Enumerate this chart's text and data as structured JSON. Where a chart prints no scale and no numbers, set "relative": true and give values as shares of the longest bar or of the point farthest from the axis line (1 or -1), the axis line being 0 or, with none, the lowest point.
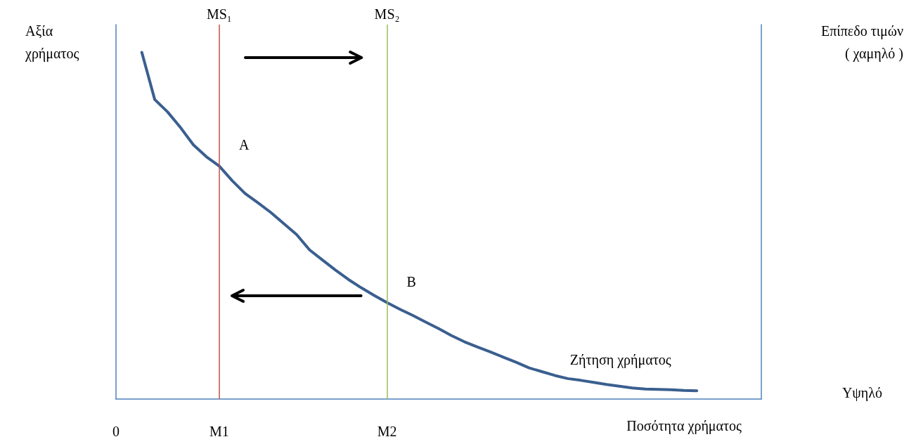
{
  "chart_data": {
    "type": "line",
    "relative": true,
    "ylabel": "Αξία χρήματος",
    "y2label": "Επίπεδο τιμών ( χαμηλό )",
    "xlabel": "Ποσότητα χρήματος",
    "categories": [
      "0",
      null,
      null,
      null,
      null,
      null,
      null,
      null,
      "M1",
      null,
      null,
      null,
      null,
      null,
      null,
      null,
      null,
      null,
      null,
      null,
      null,
      "M2",
      null,
      null,
      null,
      null,
      null,
      null,
      null,
      null,
      null,
      null,
      null,
      null,
      null,
      null,
      null,
      null,
      null,
      null,
      null,
      null,
      null,
      null,
      null,
      null,
      null,
      null,
      null,
      null,
      null
    ],
    "series": [
      {
        "name": "Ζήτηση χρήματος",
        "color": "#3a5f8f",
        "values": [
          null,
          null,
          1.0,
          0.864,
          0.828,
          0.783,
          0.733,
          0.699,
          0.672,
          0.63,
          0.593,
          0.566,
          0.538,
          0.506,
          0.474,
          0.43,
          0.401,
          0.372,
          0.345,
          0.321,
          0.299,
          0.278,
          0.259,
          0.241,
          0.222,
          0.203,
          0.183,
          0.165,
          0.15,
          0.136,
          0.121,
          0.106,
          0.09,
          0.079,
          0.068,
          0.059,
          0.054,
          0.048,
          0.042,
          0.037,
          0.032,
          0.029,
          0.028,
          0.027,
          0.025,
          0.024,
          null,
          null,
          null,
          null,
          null
        ]
      }
    ],
    "ref_lines": [
      {
        "axis": "x",
        "value": "M1",
        "label": "MS₁",
        "color": "#c0504d"
      },
      {
        "axis": "x",
        "value": "M2",
        "label": "MS₂",
        "color": "#9bbb59"
      }
    ],
    "annotations": [
      {
        "text": "A",
        "x": "M1",
        "y": 0.672
      },
      {
        "text": "B",
        "x": "M2",
        "y": 0.278
      },
      "Υψηλό"
    ],
    "grid": false,
    "legend": false,
    "marker": "none"
  }
}
